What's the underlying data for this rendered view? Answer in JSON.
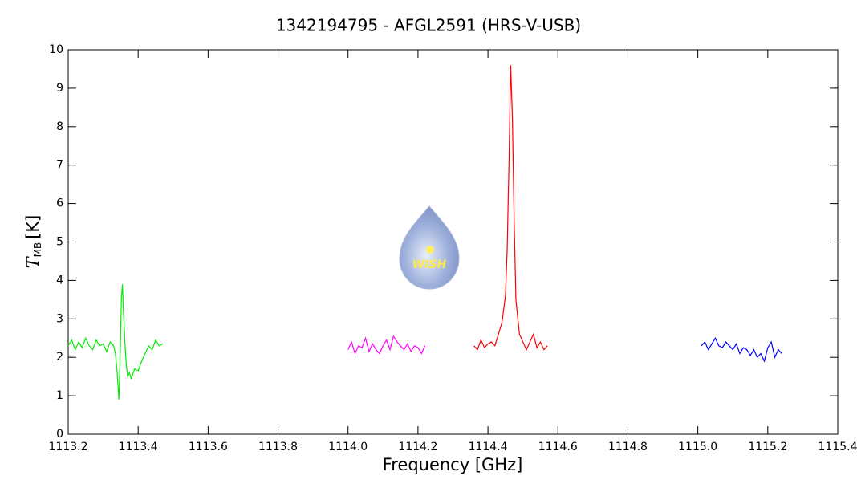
{
  "chart_data": {
    "type": "line",
    "title": "1342194795 - AFGL2591 (HRS-V-USB)",
    "xlabel": "Frequency [GHz]",
    "ylabel": {
      "symbol": "T",
      "subscript": "MB",
      "unit": "[K]"
    },
    "logo": "WISH",
    "xlim": [
      1113.2,
      1115.4
    ],
    "xticks": [
      1113.2,
      1113.4,
      1113.6,
      1113.8,
      {
        "value": 1114,
        "label": "1114.0"
      },
      1114.2,
      1114.4,
      1114.6,
      1114.8,
      {
        "value": 1115,
        "label": "1115.0"
      },
      1115.2,
      1115.4
    ],
    "ylim": [
      0,
      10
    ],
    "yticks": [
      0,
      1,
      2,
      3,
      4,
      5,
      6,
      7,
      8,
      9,
      10
    ],
    "series": [
      {
        "color": "#00ee00",
        "x": [
          1113.2,
          1113.21,
          1113.22,
          1113.23,
          1113.24,
          1113.25,
          1113.26,
          1113.27,
          1113.28,
          1113.29,
          1113.3,
          1113.31,
          1113.32,
          1113.33,
          1113.335,
          1113.34,
          1113.345,
          1113.348,
          1113.352,
          1113.355,
          1113.358,
          1113.362,
          1113.366,
          1113.37,
          1113.375,
          1113.38,
          1113.39,
          1113.4,
          1113.41,
          1113.42,
          1113.43,
          1113.44,
          1113.45,
          1113.46,
          1113.47
        ],
        "values": [
          2.3,
          2.45,
          2.2,
          2.4,
          2.25,
          2.5,
          2.3,
          2.2,
          2.45,
          2.3,
          2.35,
          2.15,
          2.4,
          2.3,
          2.1,
          1.6,
          0.9,
          1.8,
          3.5,
          3.9,
          3.2,
          2.4,
          1.8,
          1.5,
          1.6,
          1.45,
          1.7,
          1.65,
          1.9,
          2.1,
          2.3,
          2.2,
          2.45,
          2.3,
          2.35
        ]
      },
      {
        "color": "#ff00ff",
        "x": [
          1114.0,
          1114.01,
          1114.02,
          1114.03,
          1114.04,
          1114.05,
          1114.06,
          1114.07,
          1114.08,
          1114.09,
          1114.1,
          1114.11,
          1114.12,
          1114.13,
          1114.14,
          1114.15,
          1114.16,
          1114.17,
          1114.18,
          1114.19,
          1114.2,
          1114.21,
          1114.22
        ],
        "values": [
          2.2,
          2.4,
          2.1,
          2.3,
          2.25,
          2.5,
          2.15,
          2.35,
          2.2,
          2.1,
          2.3,
          2.45,
          2.2,
          2.55,
          2.4,
          2.3,
          2.2,
          2.35,
          2.15,
          2.3,
          2.25,
          2.1,
          2.3
        ]
      },
      {
        "color": "#ff0000",
        "x": [
          1114.36,
          1114.37,
          1114.38,
          1114.39,
          1114.4,
          1114.41,
          1114.42,
          1114.43,
          1114.44,
          1114.45,
          1114.455,
          1114.46,
          1114.465,
          1114.47,
          1114.475,
          1114.48,
          1114.49,
          1114.5,
          1114.51,
          1114.52,
          1114.53,
          1114.54,
          1114.55,
          1114.56,
          1114.57
        ],
        "values": [
          2.3,
          2.2,
          2.45,
          2.25,
          2.35,
          2.4,
          2.3,
          2.6,
          2.9,
          3.6,
          4.8,
          7.0,
          9.6,
          8.2,
          5.5,
          3.5,
          2.6,
          2.4,
          2.2,
          2.4,
          2.6,
          2.25,
          2.4,
          2.2,
          2.3
        ]
      },
      {
        "color": "#0000ff",
        "x": [
          1115.01,
          1115.02,
          1115.03,
          1115.04,
          1115.05,
          1115.06,
          1115.07,
          1115.08,
          1115.09,
          1115.1,
          1115.11,
          1115.12,
          1115.13,
          1115.14,
          1115.15,
          1115.16,
          1115.17,
          1115.18,
          1115.19,
          1115.2,
          1115.21,
          1115.22,
          1115.23,
          1115.24
        ],
        "values": [
          2.3,
          2.4,
          2.2,
          2.35,
          2.5,
          2.3,
          2.25,
          2.4,
          2.3,
          2.2,
          2.35,
          2.1,
          2.25,
          2.2,
          2.05,
          2.2,
          2.0,
          2.1,
          1.9,
          2.25,
          2.4,
          2.0,
          2.2,
          2.1
        ]
      }
    ]
  }
}
